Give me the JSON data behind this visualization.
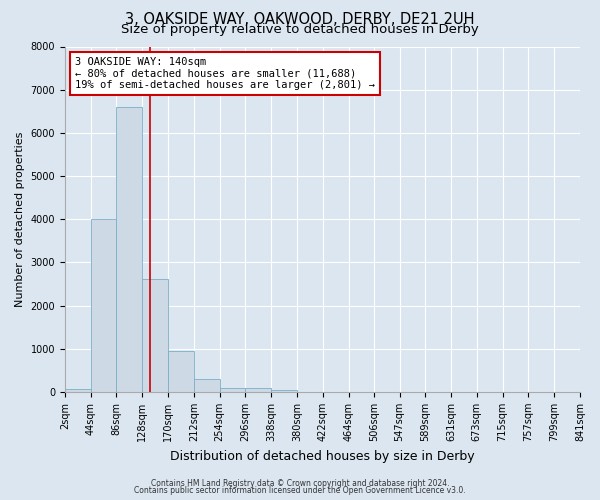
{
  "title": "3, OAKSIDE WAY, OAKWOOD, DERBY, DE21 2UH",
  "subtitle": "Size of property relative to detached houses in Derby",
  "xlabel": "Distribution of detached houses by size in Derby",
  "ylabel": "Number of detached properties",
  "footer_line1": "Contains HM Land Registry data © Crown copyright and database right 2024.",
  "footer_line2": "Contains public sector information licensed under the Open Government Licence v3.0.",
  "bin_edges": [
    2,
    44,
    86,
    128,
    170,
    212,
    254,
    296,
    338,
    380,
    422,
    464,
    506,
    547,
    589,
    631,
    673,
    715,
    757,
    799,
    841
  ],
  "bin_labels": [
    "2sqm",
    "44sqm",
    "86sqm",
    "128sqm",
    "170sqm",
    "212sqm",
    "254sqm",
    "296sqm",
    "338sqm",
    "380sqm",
    "422sqm",
    "464sqm",
    "506sqm",
    "547sqm",
    "589sqm",
    "631sqm",
    "673sqm",
    "715sqm",
    "757sqm",
    "799sqm",
    "841sqm"
  ],
  "counts": [
    60,
    4000,
    6600,
    2620,
    950,
    310,
    100,
    80,
    40,
    0,
    0,
    0,
    0,
    0,
    0,
    0,
    0,
    0,
    0,
    0
  ],
  "bar_color": "#cdd9e5",
  "bar_edge_color": "#7aafc8",
  "vline_x": 140,
  "vline_color": "#cc0000",
  "annotation_title": "3 OAKSIDE WAY: 140sqm",
  "annotation_line1": "← 80% of detached houses are smaller (11,688)",
  "annotation_line2": "19% of semi-detached houses are larger (2,801) →",
  "annotation_box_color": "#cc0000",
  "ylim": [
    0,
    8000
  ],
  "yticks": [
    0,
    1000,
    2000,
    3000,
    4000,
    5000,
    6000,
    7000,
    8000
  ],
  "background_color": "#dce6f0",
  "plot_bg_color": "#dce6f0",
  "grid_color": "#ffffff",
  "title_fontsize": 10.5,
  "subtitle_fontsize": 9.5,
  "ylabel_fontsize": 8,
  "xlabel_fontsize": 9,
  "tick_fontsize": 7,
  "annot_fontsize": 7.5,
  "footer_fontsize": 5.5
}
